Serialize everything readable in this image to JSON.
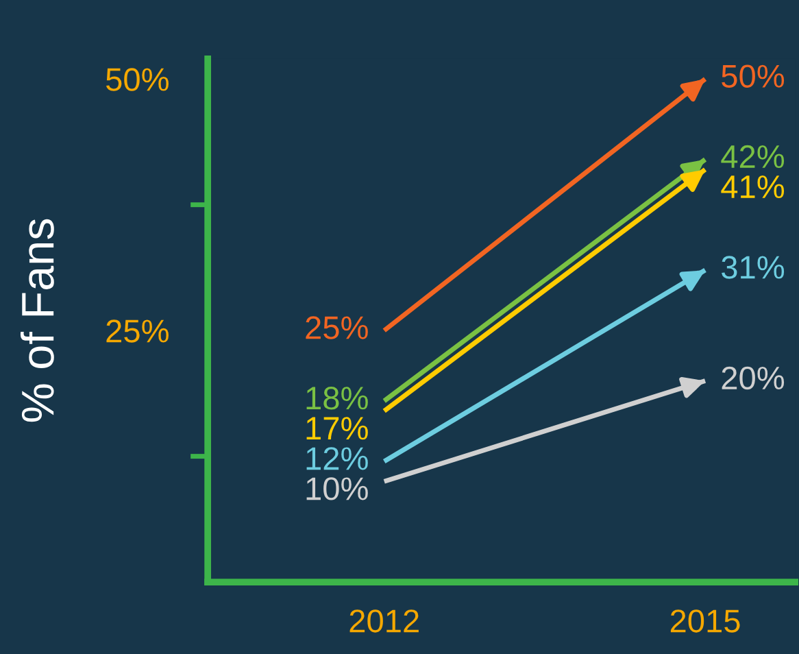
{
  "chart_data": {
    "type": "line",
    "ylabel": "% of Fans",
    "categories": [
      "2012",
      "2015"
    ],
    "series": [
      {
        "color": "#f26522",
        "values": [
          25,
          50
        ],
        "value_labels": [
          "25%",
          "50%"
        ]
      },
      {
        "color": "#7ac143",
        "values": [
          18,
          42
        ],
        "value_labels": [
          "18%",
          "42%"
        ]
      },
      {
        "color": "#ffcc00",
        "values": [
          17,
          41
        ],
        "value_labels": [
          "17%",
          "41%"
        ]
      },
      {
        "color": "#6dcde0",
        "values": [
          12,
          31
        ],
        "value_labels": [
          "12%",
          "31%"
        ]
      },
      {
        "color": "#d0d0d0",
        "values": [
          10,
          20
        ],
        "value_labels": [
          "10%",
          "20%"
        ]
      }
    ],
    "ylim": [
      0,
      52
    ],
    "yticks": [
      {
        "value": 12.5,
        "label": null
      },
      {
        "value": 25,
        "label": "25%"
      },
      {
        "value": 37.5,
        "label": null
      },
      {
        "value": 50,
        "label": "50%"
      }
    ],
    "grid": false,
    "legend": false,
    "line_style": "solid"
  }
}
